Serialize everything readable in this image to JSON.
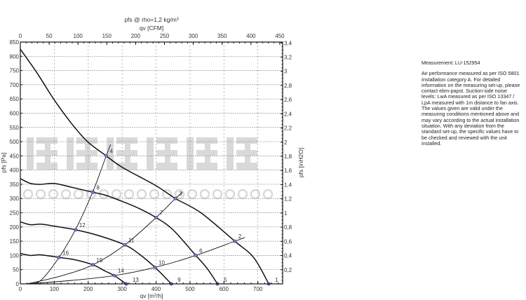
{
  "chart_data": {
    "type": "line",
    "title": "pfs @ rho=1,2 kg/m³",
    "xlabel": "qv [m³/h]",
    "x2label": "qv [CFM]",
    "ylabel": "pfs [Pa]",
    "y2label": "pfs [inH2O]",
    "xlim": [
      0,
      773
    ],
    "ylim": [
      0,
      850
    ],
    "x_ticks": [
      0,
      100,
      200,
      300,
      400,
      500,
      600,
      700
    ],
    "x2_ticks": [
      0,
      50,
      100,
      150,
      200,
      250,
      300,
      350,
      400,
      450
    ],
    "y_ticks": [
      0,
      50,
      100,
      150,
      200,
      250,
      300,
      350,
      400,
      450,
      500,
      550,
      600,
      650,
      700,
      750,
      800,
      850
    ],
    "y2_ticks": [
      "0,2",
      "0,4",
      "0,6",
      "0,8",
      "1",
      "1,2",
      "1,4",
      "1,6",
      "1,8",
      "2",
      "2,2",
      "2,4",
      "2,6",
      "2,8",
      "3",
      "3,2",
      "3,4"
    ],
    "grid": true,
    "fan_curves": [
      [
        [
          0,
          825
        ],
        [
          50,
          740
        ],
        [
          98,
          650
        ],
        [
          150,
          565
        ],
        [
          198,
          500
        ],
        [
          253,
          450
        ],
        [
          300,
          410
        ],
        [
          400,
          345
        ],
        [
          457,
          300
        ],
        [
          532,
          250
        ],
        [
          632,
          150
        ],
        [
          688,
          92
        ],
        [
          732,
          0
        ]
      ],
      [
        [
          0,
          370
        ],
        [
          30,
          353
        ],
        [
          60,
          350
        ],
        [
          100,
          353
        ],
        [
          150,
          340
        ],
        [
          214,
          322
        ],
        [
          250,
          312
        ],
        [
          300,
          290
        ],
        [
          350,
          265
        ],
        [
          400,
          233
        ],
        [
          450,
          190
        ],
        [
          517,
          100
        ],
        [
          550,
          55
        ],
        [
          581,
          0
        ]
      ],
      [
        [
          0,
          218
        ],
        [
          30,
          208
        ],
        [
          60,
          210
        ],
        [
          100,
          203
        ],
        [
          163,
          190
        ],
        [
          230,
          170
        ],
        [
          308,
          137
        ],
        [
          350,
          105
        ],
        [
          397,
          58
        ],
        [
          445,
          0
        ]
      ],
      [
        [
          0,
          107
        ],
        [
          30,
          100
        ],
        [
          60,
          102
        ],
        [
          114,
          93
        ],
        [
          160,
          85
        ],
        [
          214,
          67
        ],
        [
          250,
          45
        ],
        [
          277,
          29
        ],
        [
          312,
          0
        ]
      ]
    ],
    "system_curves": [
      [
        [
          20,
          0
        ],
        [
          60,
          12
        ],
        [
          114,
          93
        ],
        [
          163,
          192
        ],
        [
          214,
          325
        ],
        [
          253,
          450
        ],
        [
          266,
          490
        ]
      ],
      [
        [
          20,
          0
        ],
        [
          120,
          28
        ],
        [
          214,
          67
        ],
        [
          308,
          137
        ],
        [
          400,
          233
        ],
        [
          457,
          300
        ],
        [
          478,
          322
        ]
      ],
      [
        [
          20,
          0
        ],
        [
          150,
          12
        ],
        [
          277,
          29
        ],
        [
          397,
          58
        ],
        [
          517,
          100
        ],
        [
          632,
          150
        ],
        [
          662,
          163
        ]
      ]
    ],
    "operating_points": [
      {
        "label": "1",
        "x": 732,
        "y": 0
      },
      {
        "label": "2",
        "x": 632,
        "y": 150
      },
      {
        "label": "3",
        "x": 457,
        "y": 300
      },
      {
        "label": "4",
        "x": 253,
        "y": 450
      },
      {
        "label": "5",
        "x": 581,
        "y": 0
      },
      {
        "label": "6",
        "x": 517,
        "y": 100
      },
      {
        "label": "7",
        "x": 400,
        "y": 233
      },
      {
        "label": "8",
        "x": 214,
        "y": 322
      },
      {
        "label": "9",
        "x": 445,
        "y": 0
      },
      {
        "label": "10",
        "x": 397,
        "y": 58
      },
      {
        "label": "11",
        "x": 308,
        "y": 137
      },
      {
        "label": "12",
        "x": 163,
        "y": 190
      },
      {
        "label": "13",
        "x": 312,
        "y": 0
      },
      {
        "label": "14",
        "x": 277,
        "y": 29
      },
      {
        "label": "15",
        "x": 214,
        "y": 67
      },
      {
        "label": "16",
        "x": 114,
        "y": 93
      }
    ],
    "colors": {
      "curve": "#111111",
      "point": "#2a2a8a",
      "grid": "#999999",
      "watermark": "#d9d9d9"
    }
  },
  "watermark": {
    "line1": "恒瑞宏晟机电",
    "line2": "w w w . b j h e n g r u i . c n"
  },
  "note": {
    "measurement": "Measurement: LU-152954",
    "text": "Air performance measured as per ISO 5801 Installation category A. For detailed information on the measuring set-up, please contact ebm-papst. Suction-side noise levels: LwA measured as per ISO 13347 / LpA measured with 1m distance to fan axis. The values given are valid under the measuring conditions mentioned above and may vary according to the actual installation situation. With any deviation from the standard set-up, the specific values have to be checked and reviewed with the unit installed."
  }
}
